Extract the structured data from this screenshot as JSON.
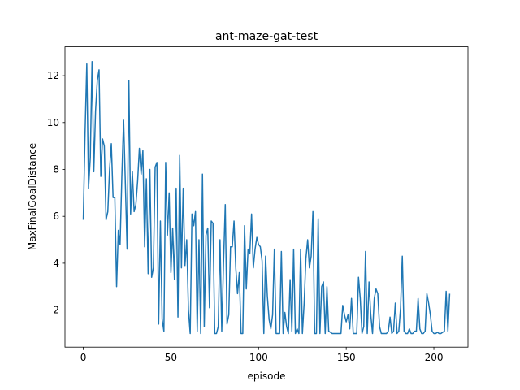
{
  "chart_data": {
    "type": "line",
    "title": "ant-maze-gat-test",
    "x_label": "episode",
    "y_label": "MaxFinalGoalDistance",
    "x": [
      0,
      1,
      2,
      3,
      4,
      5,
      6,
      7,
      8,
      9,
      10,
      11,
      12,
      13,
      14,
      15,
      16,
      17,
      18,
      19,
      20,
      21,
      22,
      23,
      24,
      25,
      26,
      27,
      28,
      29,
      30,
      31,
      32,
      33,
      34,
      35,
      36,
      37,
      38,
      39,
      40,
      41,
      42,
      43,
      44,
      45,
      46,
      47,
      48,
      49,
      50,
      51,
      52,
      53,
      54,
      55,
      56,
      57,
      58,
      59,
      60,
      61,
      62,
      63,
      64,
      65,
      66,
      67,
      68,
      69,
      70,
      71,
      72,
      73,
      74,
      75,
      76,
      77,
      78,
      79,
      80,
      81,
      82,
      83,
      84,
      85,
      86,
      87,
      88,
      89,
      90,
      91,
      92,
      93,
      94,
      95,
      96,
      97,
      98,
      99,
      100,
      101,
      102,
      103,
      104,
      105,
      106,
      107,
      108,
      109,
      110,
      111,
      112,
      113,
      114,
      115,
      116,
      117,
      118,
      119,
      120,
      121,
      122,
      123,
      124,
      125,
      126,
      127,
      128,
      129,
      130,
      131,
      132,
      133,
      134,
      135,
      136,
      137,
      138,
      139,
      140,
      141,
      142,
      143,
      144,
      145,
      146,
      147,
      148,
      149,
      150,
      151,
      152,
      153,
      154,
      155,
      156,
      157,
      158,
      159,
      160,
      161,
      162,
      163,
      164,
      165,
      166,
      167,
      168,
      169,
      170,
      171,
      172,
      173,
      174,
      175,
      176,
      177,
      178,
      179,
      180,
      181,
      182,
      183,
      184,
      185,
      186,
      187,
      188,
      189,
      190,
      191,
      192,
      193,
      194,
      195,
      196,
      197,
      198,
      199,
      200,
      201,
      202,
      203,
      204,
      205,
      206,
      207,
      208,
      209
    ],
    "series": [
      {
        "color": "#1f77b4",
        "values": [
          5.85,
          9.5,
          12.5,
          7.2,
          8.5,
          12.6,
          7.9,
          10.5,
          11.8,
          12.25,
          7.7,
          9.3,
          9.0,
          5.85,
          6.2,
          8.0,
          9.1,
          6.8,
          6.8,
          3.0,
          5.4,
          4.8,
          7.7,
          10.1,
          7.4,
          4.6,
          11.8,
          6.1,
          7.9,
          6.2,
          6.5,
          7.5,
          8.9,
          7.8,
          8.8,
          4.7,
          7.6,
          3.55,
          8.0,
          3.4,
          3.8,
          8.1,
          8.3,
          1.4,
          5.8,
          1.6,
          1.1,
          8.3,
          5.2,
          7.0,
          3.6,
          5.5,
          3.3,
          7.2,
          1.7,
          8.6,
          3.8,
          7.2,
          3.9,
          5.0,
          2.0,
          1.0,
          6.1,
          5.6,
          6.2,
          1.1,
          5.0,
          1.0,
          7.8,
          1.3,
          5.2,
          5.5,
          2.1,
          5.8,
          5.7,
          1.0,
          1.0,
          1.3,
          5.0,
          1.1,
          4.0,
          6.5,
          1.4,
          1.8,
          4.7,
          4.7,
          5.8,
          3.8,
          2.7,
          3.6,
          1.0,
          1.0,
          5.6,
          2.9,
          4.6,
          4.4,
          6.1,
          3.8,
          4.6,
          5.1,
          4.8,
          4.7,
          4.1,
          1.0,
          4.3,
          2.6,
          1.6,
          1.2,
          1.8,
          4.6,
          1.0,
          1.0,
          1.0,
          4.5,
          1.0,
          1.9,
          1.3,
          1.0,
          3.3,
          1.1,
          4.6,
          1.0,
          1.2,
          1.0,
          4.6,
          1.0,
          2.3,
          4.2,
          5.0,
          3.8,
          4.3,
          6.2,
          1.0,
          1.0,
          5.9,
          1.0,
          3.0,
          3.2,
          1.0,
          3.0,
          1.1,
          1.05,
          1.0,
          1.0,
          1.0,
          1.0,
          1.0,
          1.0,
          2.2,
          1.8,
          1.5,
          1.8,
          1.2,
          2.5,
          1.0,
          1.0,
          1.0,
          3.4,
          2.5,
          1.0,
          1.3,
          4.5,
          1.0,
          3.2,
          1.8,
          1.0,
          2.5,
          2.9,
          2.7,
          1.3,
          1.0,
          1.0,
          1.0,
          1.0,
          1.1,
          1.7,
          1.0,
          1.1,
          2.3,
          1.0,
          1.1,
          2.1,
          4.3,
          1.1,
          1.0,
          1.0,
          1.2,
          1.0,
          1.0,
          1.1,
          1.1,
          2.5,
          1.2,
          1.0,
          1.0,
          1.1,
          2.7,
          2.3,
          1.8,
          1.1,
          1.0,
          1.0,
          1.05,
          1.0,
          1.0,
          1.05,
          1.1,
          2.8,
          1.1,
          2.7
        ]
      }
    ],
    "xlim": [
      -10.45,
      219.45
    ],
    "ylim": [
      0.42,
      13.23
    ],
    "xticks": [
      0,
      50,
      100,
      150,
      200
    ],
    "yticks": [
      2,
      4,
      6,
      8,
      10,
      12
    ]
  }
}
